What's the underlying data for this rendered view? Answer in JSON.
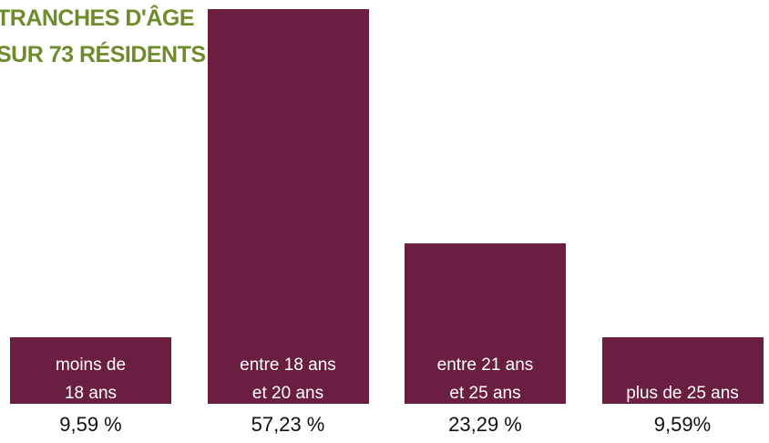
{
  "chart_data": {
    "type": "bar",
    "title": "TRANCHES D'ÂGE",
    "subtitle": "SUR 73 RÉSIDENTS",
    "categories": [
      "moins de\n18 ans",
      "entre 18 ans\net 20 ans",
      "entre 21 ans\net 25 ans",
      "plus de 25 ans"
    ],
    "values": [
      9.59,
      57.23,
      23.29,
      9.59
    ],
    "value_labels": [
      "9,59 %",
      "57,23 %",
      "23,29 %",
      "9,59%"
    ],
    "color": "#6b1f40",
    "title_color": "#6e8c2c"
  }
}
